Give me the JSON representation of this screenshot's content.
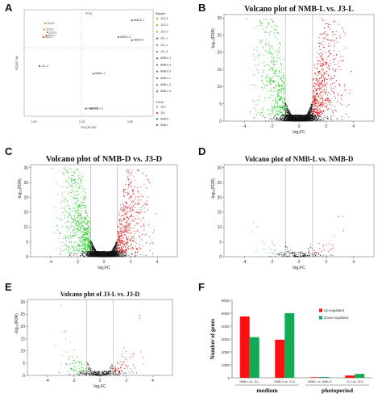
{
  "panel_letters": [
    "A",
    "B",
    "C",
    "D",
    "E",
    "F"
  ],
  "colors": {
    "up": "#dd1111",
    "down": "#22cc22",
    "ns": "#111111",
    "bar_up": "#ff1111",
    "bar_down": "#11aa55",
    "line": "#999999"
  },
  "chart_data": [
    {
      "panel": "A",
      "type": "scatter",
      "title": "PCA",
      "xlabel": "PC1(79.3%)",
      "ylabel": "PC2(8.7%)",
      "xticks": [
        "0.00",
        "0.25",
        "0.50"
      ],
      "xlim": [
        -0.05,
        0.62
      ],
      "ylim": [
        -0.45,
        0.25
      ],
      "points": [
        {
          "label": "J3-D-1",
          "group": "J3-D",
          "x": 0.06,
          "y": 0.16
        },
        {
          "label": "J3-D-2",
          "group": "J3-D",
          "x": 0.055,
          "y": 0.12
        },
        {
          "label": "J3-D-3",
          "group": "J3-D",
          "x": 0.07,
          "y": 0.1
        },
        {
          "label": "J3-L-1",
          "group": "J3-L",
          "x": 0.05,
          "y": 0.07
        },
        {
          "label": "J3-L-2",
          "group": "J3-L",
          "x": 0.065,
          "y": 0.08
        },
        {
          "label": "J3-L-3",
          "group": "J3-L",
          "x": 0.03,
          "y": -0.12
        },
        {
          "label": "NMB-D-1",
          "group": "NMB-D",
          "x": 0.51,
          "y": 0.18
        },
        {
          "label": "NMB-D-2",
          "group": "NMB-D",
          "x": 0.44,
          "y": 0.07
        },
        {
          "label": "NMB-D-3",
          "group": "NMB-D",
          "x": 0.51,
          "y": 0.05
        },
        {
          "label": "NMB-L-1",
          "group": "NMB-L",
          "x": 0.31,
          "y": -0.17
        },
        {
          "label": "NMB-L-2",
          "group": "NMB-L",
          "x": 0.27,
          "y": -0.4
        },
        {
          "label": "NMB-L-3",
          "group": "NMB-L",
          "x": 0.3,
          "y": -0.4
        }
      ],
      "legend_sample_title": "Sample",
      "legend_samples": [
        "J3-D-1",
        "J3-D-2",
        "J3-D-3",
        "J3-L-1",
        "J3-L-2",
        "J3-L-3",
        "NMB-D-1",
        "NMB-D-2",
        "NMB-D-3",
        "NMB-L-1",
        "NMB-L-2",
        "NMB-L-3"
      ],
      "legend_group_title": "Group",
      "legend_groups": [
        "J3-D",
        "J3-L",
        "NMB-D",
        "NMB-L"
      ]
    },
    {
      "panel": "B",
      "type": "scatter",
      "title": "Volcano plot of NMB-L vs. J3-L",
      "xlabel": "log₂FC",
      "ylabel": "-log₁₀(FDR)",
      "xlim": [
        -5.5,
        5.5
      ],
      "ylim": [
        0,
        31
      ],
      "xticks": [
        -4,
        -2,
        0,
        2,
        4
      ],
      "yticks": [
        0,
        5,
        10,
        15,
        20,
        25,
        30
      ],
      "thresholds_x": [
        -1,
        1
      ],
      "spread": 10,
      "density": 3200,
      "green_frac": 0.42
    },
    {
      "panel": "C",
      "type": "scatter",
      "title": "Volcano plot of NMB-D vs. J3-D",
      "xlabel": "log₂FC",
      "ylabel": "-log₁₀(FDR)",
      "xlim": [
        -5.5,
        5.5
      ],
      "ylim": [
        0,
        31
      ],
      "xticks": [
        -4,
        -2,
        0,
        2,
        4
      ],
      "yticks": [
        0,
        5,
        10,
        15,
        20,
        25,
        30
      ],
      "thresholds_x": [
        -1,
        1
      ],
      "spread": 9,
      "density": 3200,
      "green_frac": 0.55
    },
    {
      "panel": "D",
      "type": "scatter",
      "title": "Volcano plot of NMB-L vs. NMB-D",
      "xlabel": "log₂FC",
      "ylabel": "-log₁₀(FDR)",
      "xlim": [
        -5.5,
        5.5
      ],
      "ylim": [
        0,
        31
      ],
      "xticks": [
        -4,
        -2,
        0,
        2,
        4
      ],
      "yticks": [
        0,
        5,
        10,
        15,
        20,
        25,
        30
      ],
      "thresholds_x": [
        -1,
        1
      ],
      "spread": 1.5,
      "density": 180,
      "green_frac": 0.5
    },
    {
      "panel": "E",
      "type": "scatter",
      "title": "Volcano plot of J3-L vs. J3-D",
      "xlabel": "log₂FC",
      "ylabel": "-log₁₀(FDR)",
      "xlim": [
        -5.5,
        5.5
      ],
      "ylim": [
        0,
        31
      ],
      "xticks": [
        -4,
        -2,
        0,
        2,
        4
      ],
      "yticks": [
        0,
        5,
        10,
        15,
        20,
        25,
        30
      ],
      "thresholds_x": [
        -1,
        1
      ],
      "spread": 2.5,
      "density": 400,
      "green_frac": 0.55
    },
    {
      "panel": "F",
      "type": "bar",
      "ylabel": "Number of genes",
      "ylim": [
        0,
        6000
      ],
      "yticks": [
        0,
        1000,
        2000,
        3000,
        4000,
        5000,
        6000
      ],
      "categories": [
        "NMB-L vs. J3-L",
        "NMB-D vs. J3-D",
        "NMB-L vs. NMB-D",
        "J3-L vs. J3-D"
      ],
      "series": [
        {
          "name": "Up-regulated",
          "values": [
            4750,
            2950,
            40,
            180
          ]
        },
        {
          "name": "Down-regulated",
          "values": [
            3150,
            5000,
            60,
            300
          ]
        }
      ],
      "group_labels": [
        "medium",
        "photoperiod"
      ],
      "legend": "top-right"
    }
  ]
}
